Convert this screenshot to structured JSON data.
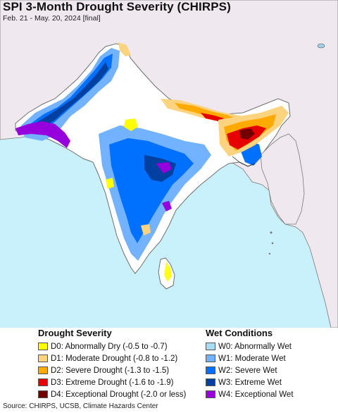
{
  "header": {
    "title": "SPI 3-Month Drought Severity (CHIRPS)",
    "subtitle": "Feb. 21 - May. 20, 2024 [final]"
  },
  "colors": {
    "land_unmasked": "#efe9ef",
    "ocean": "#c9f1fb",
    "near_normal": "#ffffff",
    "border": "#7a7a7a"
  },
  "legend": {
    "drought": {
      "heading": "Drought Severity",
      "items": [
        {
          "label": "D0: Abnormally Dry (-0.5 to -0.7)",
          "color": "#ffff00"
        },
        {
          "label": "D1: Moderate Drought (-0.8 to -1.2)",
          "color": "#fcd37f"
        },
        {
          "label": "D2: Severe Drought (-1.3 to -1.5)",
          "color": "#ffaa00"
        },
        {
          "label": "D3: Extreme Drought (-1.6 to -1.9)",
          "color": "#e60000"
        },
        {
          "label": "D4: Exceptional Drought (-2.0 or less)",
          "color": "#730000"
        }
      ]
    },
    "wet": {
      "heading": "Wet Conditions",
      "items": [
        {
          "label": "W0: Abnormally Wet",
          "color": "#aadcf5"
        },
        {
          "label": "W1: Moderate Wet",
          "color": "#73b2ff"
        },
        {
          "label": "W2: Severe Wet",
          "color": "#0070ff"
        },
        {
          "label": "W3: Extreme Wet",
          "color": "#0040a0"
        },
        {
          "label": "W4: Exceptional Wet",
          "color": "#9600dc"
        }
      ]
    }
  },
  "source": "Source: CHIRPS, UCSB, Climate Hazards Center"
}
